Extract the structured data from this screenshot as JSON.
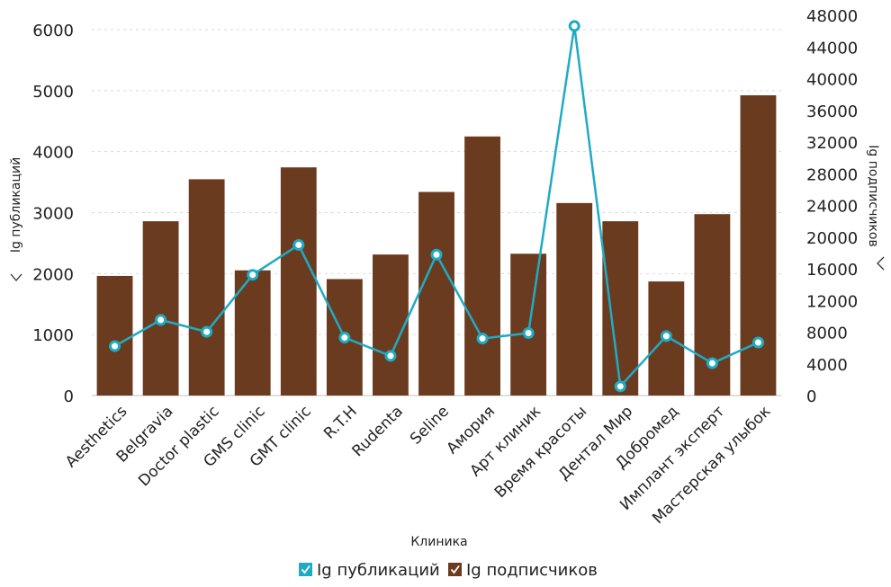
{
  "chart_data": {
    "type": "bar",
    "xlabel": "Клиника",
    "categories": [
      "Aesthetics",
      "Belgravia",
      "Doctor plastic",
      "GMS clinic",
      "GMT clinic",
      "R.T.H",
      "Rudenta",
      "Seline",
      "Амория",
      "Арт клиник",
      "Время красоты",
      "Дентал Мир",
      "Добромед",
      "Имплант эксперт",
      "Мастерская улыбок"
    ],
    "y_left": {
      "label": "Ig публикаций",
      "ylim": [
        0,
        6000
      ],
      "ticks": [
        0,
        1000,
        2000,
        3000,
        4000,
        5000,
        6000
      ]
    },
    "y_right": {
      "label": "Ig подписчиков",
      "ylim": [
        0,
        48000
      ],
      "ticks": [
        0,
        4000,
        8000,
        12000,
        16000,
        20000,
        24000,
        28000,
        32000,
        36000,
        40000,
        44000,
        48000
      ]
    },
    "series": [
      {
        "name": "Ig публикаций",
        "type": "line",
        "axis": "left",
        "color": "#1fabc4",
        "values": [
          810,
          1240,
          1045,
          1980,
          2470,
          950,
          650,
          2310,
          935,
          1025,
          6060,
          150,
          975,
          530,
          870
        ]
      },
      {
        "name": "Ig подписчиков",
        "type": "bar",
        "axis": "right",
        "color": "#6b3b1f",
        "values": [
          15100,
          22000,
          27300,
          15800,
          28800,
          14700,
          17800,
          25700,
          32700,
          17900,
          24300,
          22000,
          14400,
          22900,
          37900
        ]
      }
    ],
    "grid": true,
    "legend_position": "bottom"
  }
}
